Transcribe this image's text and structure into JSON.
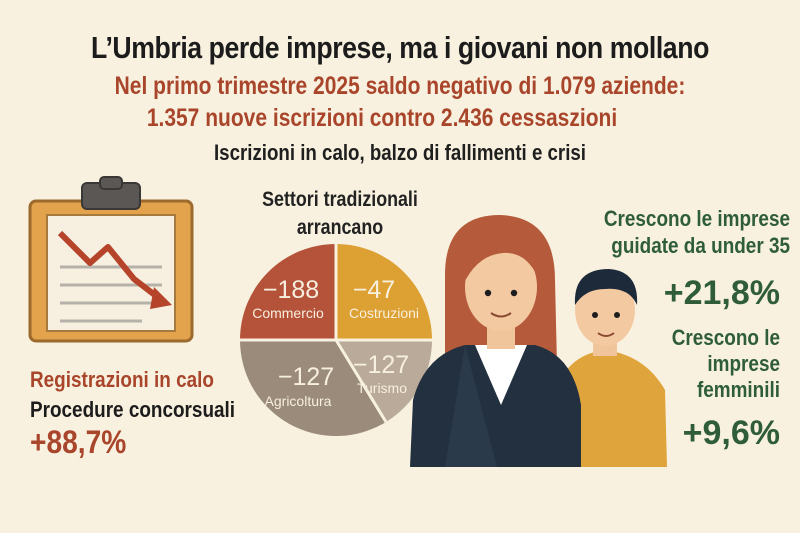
{
  "headline": "L’Umbria perde imprese, ma i giovani non mollano",
  "subheadline_1": "Nel primo trimestre 2025 saldo negativo di 1.079 aziende:",
  "subheadline_2": "1.357 nuove iscrizioni contro 2.436 cessaszioni",
  "subheadline_3": "Iscrizioni in calo, balzo di fallimenti e crisi",
  "left_panel": {
    "label_red": "Registrazioni in calo",
    "label_black": "Procedure concorsuali",
    "percentage": "+88,7%"
  },
  "sectors": {
    "title_line1": "Settori tradizionali",
    "title_line2": "arrancano",
    "slices": [
      {
        "value": "−188",
        "label": "Commercio",
        "color": "#b5533a"
      },
      {
        "value": "−47",
        "label": "Costruzioni",
        "color": "#dda032"
      },
      {
        "value": "−127",
        "label": "Turismo",
        "color": "#b9aa99"
      },
      {
        "value": "−127",
        "label": "Agricoltura",
        "color": "#9a8b7a"
      }
    ]
  },
  "right_panel": {
    "under35_line1": "Crescono le imprese",
    "under35_line2": "guidate da under 35",
    "under35_pct": "+21,8%",
    "female_line1": "Crescono le",
    "female_line2": "imprese",
    "female_line3": "femminili",
    "female_pct": "+9,6%"
  },
  "colors": {
    "background": "#f8f1df",
    "accent_red": "#a9452b",
    "accent_green": "#2f5d3a",
    "clipboard_orange": "#e0a049"
  }
}
